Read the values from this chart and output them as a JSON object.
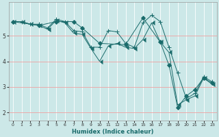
{
  "xlabel": "Humidex (Indice chaleur)",
  "xlim": [
    -0.5,
    23.5
  ],
  "ylim": [
    1.7,
    6.3
  ],
  "yticks": [
    2,
    3,
    4,
    5
  ],
  "xticks": [
    0,
    1,
    2,
    3,
    4,
    5,
    6,
    7,
    8,
    9,
    10,
    11,
    12,
    13,
    14,
    15,
    16,
    17,
    18,
    19,
    20,
    21,
    22,
    23
  ],
  "bg_color": "#cce8e8",
  "grid_color_major_x": "#ffffff",
  "grid_color_major_y": "#f0a0a0",
  "line_color": "#1a6b6b",
  "series": [
    {
      "x": [
        0,
        1,
        2,
        3,
        4,
        5,
        6,
        7,
        8,
        9,
        10,
        11,
        12,
        13,
        14,
        15,
        16,
        17,
        18,
        19,
        20,
        21,
        22,
        23
      ],
      "y": [
        5.55,
        5.55,
        5.45,
        5.45,
        5.3,
        5.65,
        5.55,
        5.2,
        5.15,
        4.55,
        4.55,
        5.2,
        5.15,
        4.7,
        4.55,
        5.5,
        5.8,
        5.55,
        4.55,
        3.55,
        2.55,
        2.75,
        3.4,
        3.2
      ],
      "marker": "+"
    },
    {
      "x": [
        0,
        1,
        2,
        3,
        4,
        5,
        6,
        7,
        8,
        9,
        10,
        11,
        12,
        13,
        14,
        15,
        16,
        17,
        18,
        19,
        20,
        21,
        22,
        23
      ],
      "y": [
        5.55,
        5.55,
        5.45,
        5.4,
        5.25,
        5.6,
        5.5,
        5.1,
        5.05,
        4.5,
        4.0,
        4.6,
        4.7,
        4.55,
        4.5,
        4.85,
        5.5,
        4.75,
        4.35,
        2.3,
        2.5,
        2.65,
        3.35,
        3.1
      ],
      "marker": 4
    },
    {
      "x": [
        0,
        3,
        5,
        7,
        8,
        10,
        13,
        15,
        17,
        18,
        19,
        20,
        21,
        22,
        23
      ],
      "y": [
        5.55,
        5.4,
        5.55,
        5.55,
        5.3,
        4.7,
        4.65,
        5.7,
        4.75,
        3.85,
        2.2,
        2.65,
        2.9,
        3.35,
        3.15
      ],
      "marker": "D"
    }
  ],
  "marker_sizes": [
    4,
    4,
    3
  ],
  "linewidth": 0.7
}
